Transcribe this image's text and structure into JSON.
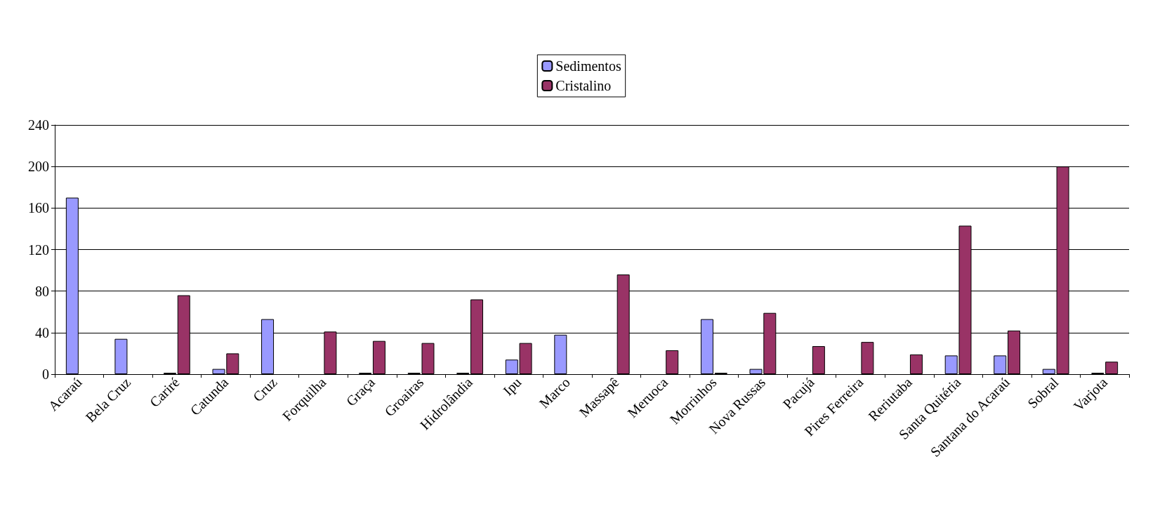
{
  "chart_data": {
    "type": "bar",
    "categories": [
      "Acaraú",
      "Bela Cruz",
      "Cariré",
      "Catunda",
      "Cruz",
      "Forquilha",
      "Graça",
      "Groairas",
      "Hidrolândia",
      "Ipu",
      "Marco",
      "Massapê",
      "Meruoca",
      "Morrinhos",
      "Nova Russas",
      "Pacujá",
      "Pires Ferreira",
      "Reriutaba",
      "Santa Quitéria",
      "Santana do Acaraú",
      "Sobral",
      "Varjota"
    ],
    "series": [
      {
        "name": "Sedimentos",
        "color": "#9999ff",
        "values": [
          170,
          34,
          0,
          5,
          53,
          null,
          0,
          0,
          0,
          14,
          38,
          null,
          null,
          53,
          5,
          null,
          null,
          null,
          18,
          18,
          5,
          0
        ]
      },
      {
        "name": "Cristalino",
        "color": "#993366",
        "values": [
          null,
          null,
          76,
          20,
          null,
          41,
          32,
          30,
          72,
          30,
          null,
          96,
          23,
          0,
          59,
          27,
          31,
          19,
          143,
          42,
          200,
          12
        ]
      }
    ],
    "ylim": [
      0,
      240
    ],
    "yticks": [
      0,
      40,
      80,
      120,
      160,
      200,
      240
    ],
    "grid": "y",
    "legend": "top"
  }
}
